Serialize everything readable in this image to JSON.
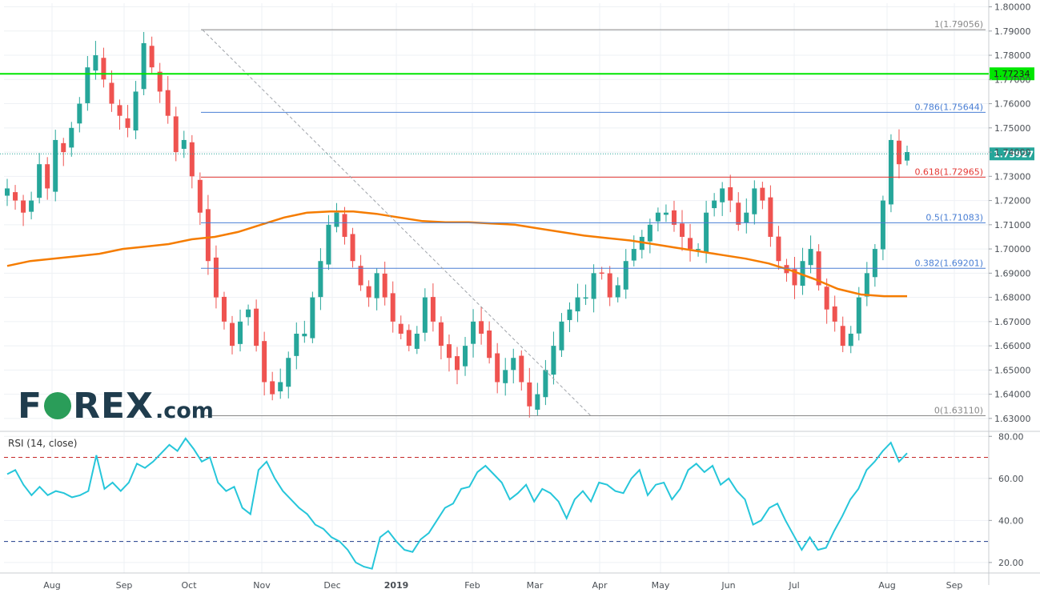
{
  "watermark": {
    "f": "F",
    "rex": "REX",
    "com": ".com"
  },
  "rsi_label": "RSI (14, close)",
  "chart_data": [
    {
      "type": "candlestick",
      "x_ticks": [
        "Aug",
        "Sep",
        "Oct",
        "Nov",
        "Dec",
        "2019",
        "Feb",
        "Mar",
        "Apr",
        "May",
        "Jun",
        "Jul",
        "Aug",
        "Sep"
      ],
      "ylim": [
        1.625,
        1.8015
      ],
      "y_ticks": [
        "1.63000",
        "1.64000",
        "1.65000",
        "1.66000",
        "1.67000",
        "1.68000",
        "1.69000",
        "1.70000",
        "1.71000",
        "1.72000",
        "1.73000",
        "1.74000",
        "1.75000",
        "1.76000",
        "1.77000",
        "1.78000",
        "1.79000",
        "1.80000"
      ],
      "grid": true,
      "last_price": "1.73927",
      "horizontal_level": {
        "value": 1.77234,
        "label": "1.77234",
        "color": "#00e600"
      },
      "fibonacci": [
        {
          "label": "1(1.79056)",
          "value": 1.79056,
          "color": "#888888"
        },
        {
          "label": "0.786(1.75644)",
          "value": 1.75644,
          "color": "#4a7fd4"
        },
        {
          "label": "0.618(1.72965)",
          "value": 1.72965,
          "color": "#e53935"
        },
        {
          "label": "0.5(1.71083)",
          "value": 1.71083,
          "color": "#4a7fd4"
        },
        {
          "label": "0.382(1.69201)",
          "value": 1.69201,
          "color": "#4a7fd4"
        },
        {
          "label": "0(1.63110)",
          "value": 1.6311,
          "color": "#888888"
        }
      ],
      "trend_line": {
        "from": 1.7905,
        "to": 1.6311
      },
      "close_path": [
        1.725,
        1.72,
        1.715,
        1.72,
        1.735,
        1.725,
        1.745,
        1.74,
        1.75,
        1.76,
        1.775,
        1.78,
        1.77,
        1.76,
        1.755,
        1.75,
        1.765,
        1.785,
        1.775,
        1.765,
        1.755,
        1.74,
        1.745,
        1.73,
        1.715,
        1.695,
        1.68,
        1.67,
        1.66,
        1.67,
        1.675,
        1.66,
        1.645,
        1.64,
        1.645,
        1.655,
        1.665,
        1.665,
        1.68,
        1.695,
        1.71,
        1.715,
        1.705,
        1.695,
        1.685,
        1.68,
        1.69,
        1.68,
        1.67,
        1.665,
        1.66,
        1.665,
        1.68,
        1.67,
        1.66,
        1.655,
        1.65,
        1.66,
        1.67,
        1.665,
        1.655,
        1.645,
        1.65,
        1.655,
        1.645,
        1.635,
        1.64,
        1.65,
        1.66,
        1.67,
        1.675,
        1.68,
        1.68,
        1.69,
        1.69,
        1.68,
        1.685,
        1.695,
        1.7,
        1.705,
        1.71,
        1.715,
        1.715,
        1.71,
        1.705,
        1.7,
        1.7,
        1.715,
        1.72,
        1.725,
        1.72,
        1.71,
        1.715,
        1.725,
        1.72,
        1.705,
        1.695,
        1.69,
        1.685,
        1.695,
        1.7,
        1.685,
        1.675,
        1.67,
        1.66,
        1.665,
        1.68,
        1.69,
        1.7,
        1.72,
        1.745,
        1.735,
        1.74
      ],
      "sma_path": [
        1.693,
        1.695,
        1.696,
        1.697,
        1.698,
        1.7,
        1.701,
        1.702,
        1.704,
        1.705,
        1.707,
        1.71,
        1.713,
        1.715,
        1.7155,
        1.7155,
        1.7145,
        1.713,
        1.7115,
        1.711,
        1.711,
        1.7105,
        1.71,
        1.7085,
        1.707,
        1.7055,
        1.7045,
        1.7035,
        1.702,
        1.7005,
        1.699,
        1.6975,
        1.696,
        1.694,
        1.691,
        1.6875,
        1.6835,
        1.6812,
        1.6805,
        1.6805
      ]
    },
    {
      "type": "line",
      "title": "RSI (14, close)",
      "ylim": [
        15,
        82
      ],
      "y_ticks": [
        "20.00",
        "40.00",
        "60.00",
        "80.00"
      ],
      "levels": [
        70,
        30
      ],
      "values": [
        62,
        64,
        57,
        52,
        56,
        52,
        54,
        53,
        51,
        52,
        54,
        71,
        55,
        58,
        54,
        58,
        67,
        65,
        68,
        72,
        76,
        73,
        79,
        74,
        68,
        70,
        58,
        54,
        56,
        46,
        43,
        64,
        68,
        60,
        54,
        50,
        46,
        43,
        38,
        36,
        32,
        30,
        26,
        20,
        18,
        17,
        32,
        35,
        30,
        26,
        25,
        31,
        34,
        40,
        46,
        48,
        55,
        56,
        63,
        66,
        62,
        58,
        50,
        53,
        57,
        49,
        55,
        53,
        49,
        41,
        50,
        54,
        49,
        58,
        57,
        54,
        53,
        60,
        64,
        52,
        57,
        58,
        50,
        55,
        64,
        67,
        63,
        66,
        57,
        60,
        54,
        50,
        38,
        40,
        46,
        48,
        40,
        33,
        26,
        32,
        26,
        27,
        35,
        42,
        50,
        55,
        64,
        68,
        73,
        77,
        68,
        72
      ]
    }
  ]
}
